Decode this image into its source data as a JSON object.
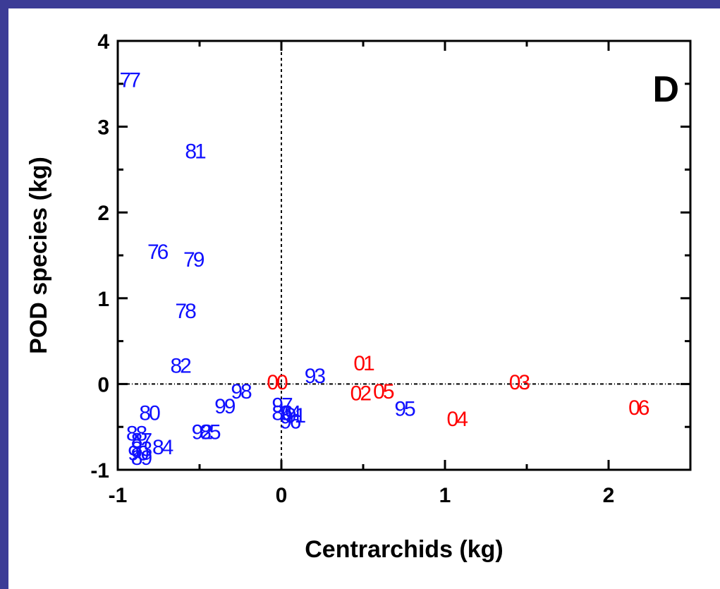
{
  "panel_label": "D",
  "chart_data": {
    "type": "scatter",
    "title": "",
    "xlabel": "Centrarchids (kg)",
    "ylabel": "POD species (kg)",
    "xlim": [
      -1,
      2.5
    ],
    "ylim": [
      -1,
      4
    ],
    "xticks": [
      -1,
      0,
      1,
      2
    ],
    "yticks": [
      -1,
      0,
      1,
      2,
      3,
      4
    ],
    "reference_lines": [
      {
        "axis": "x",
        "value": 0,
        "style": "dotted"
      },
      {
        "axis": "y",
        "value": 0,
        "style": "dotted"
      }
    ],
    "grid": false,
    "marker": "text-label",
    "series": [
      {
        "color": "#1010ff",
        "points": [
          {
            "label": "77",
            "x": -0.93,
            "y": 3.55
          },
          {
            "label": "81",
            "x": -0.53,
            "y": 2.72
          },
          {
            "label": "76",
            "x": -0.76,
            "y": 1.55
          },
          {
            "label": "79",
            "x": -0.54,
            "y": 1.46
          },
          {
            "label": "78",
            "x": -0.59,
            "y": 0.86
          },
          {
            "label": "82",
            "x": -0.62,
            "y": 0.22
          },
          {
            "label": "93",
            "x": 0.2,
            "y": 0.1
          },
          {
            "label": "98",
            "x": -0.25,
            "y": -0.08
          },
          {
            "label": "99",
            "x": -0.35,
            "y": -0.25
          },
          {
            "label": "80",
            "x": -0.81,
            "y": -0.33
          },
          {
            "label": "97",
            "x": 0.0,
            "y": -0.24
          },
          {
            "label": "86",
            "x": 0.0,
            "y": -0.33
          },
          {
            "label": "94",
            "x": 0.05,
            "y": -0.33
          },
          {
            "label": "91",
            "x": 0.08,
            "y": -0.36
          },
          {
            "label": "96",
            "x": 0.05,
            "y": -0.43
          },
          {
            "label": "95",
            "x": 0.75,
            "y": -0.28
          },
          {
            "label": "92",
            "x": -0.49,
            "y": -0.55
          },
          {
            "label": "85",
            "x": -0.44,
            "y": -0.55
          },
          {
            "label": "88",
            "x": -0.89,
            "y": -0.57
          },
          {
            "label": "87",
            "x": -0.86,
            "y": -0.65
          },
          {
            "label": "84",
            "x": -0.73,
            "y": -0.73
          },
          {
            "label": "83",
            "x": -0.86,
            "y": -0.75
          },
          {
            "label": "90",
            "x": -0.88,
            "y": -0.8
          },
          {
            "label": "89",
            "x": -0.86,
            "y": -0.85
          }
        ]
      },
      {
        "color": "#ff0000",
        "points": [
          {
            "label": "01",
            "x": 0.5,
            "y": 0.25
          },
          {
            "label": "00",
            "x": -0.03,
            "y": 0.03
          },
          {
            "label": "02",
            "x": 0.48,
            "y": -0.1
          },
          {
            "label": "05",
            "x": 0.62,
            "y": -0.08
          },
          {
            "label": "03",
            "x": 1.45,
            "y": 0.03
          },
          {
            "label": "04",
            "x": 1.07,
            "y": -0.4
          },
          {
            "label": "06",
            "x": 2.18,
            "y": -0.27
          }
        ]
      }
    ]
  }
}
